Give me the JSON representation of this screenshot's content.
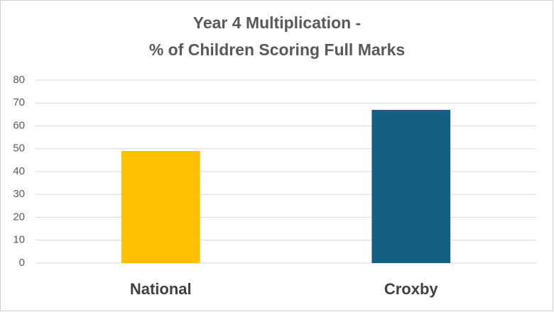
{
  "chart_data": {
    "type": "bar",
    "title": [
      "Year 4 Multiplication  -",
      "% of Children Scoring Full Marks"
    ],
    "categories": [
      "National",
      "Croxby"
    ],
    "values": [
      49,
      67
    ],
    "colors": [
      "#ffc000",
      "#156082"
    ],
    "ylim": [
      0,
      80
    ],
    "yticks": [
      0,
      10,
      20,
      30,
      40,
      50,
      60,
      70,
      80
    ],
    "grid": true
  }
}
